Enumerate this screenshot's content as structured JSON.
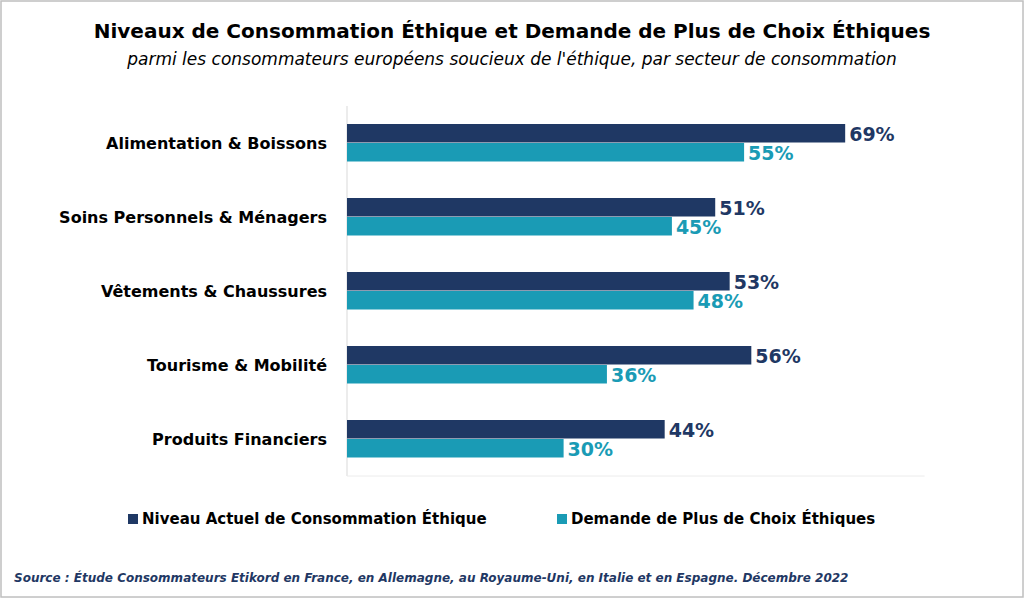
{
  "chart_data": {
    "type": "bar",
    "orientation": "horizontal",
    "title": "Niveaux de Consommation Éthique et Demande de Plus de Choix Éthiques",
    "subtitle": "parmi les consommateurs européens soucieux de l'éthique, par secteur de consommation",
    "categories": [
      "Alimentation & Boissons",
      "Soins Personnels & Ménagers",
      "Vêtements & Chaussures",
      "Tourisme & Mobilité",
      "Produits Financiers"
    ],
    "series": [
      {
        "name": "Niveau Actuel de Consommation Éthique",
        "color": "#1f3864",
        "values": [
          69,
          51,
          53,
          56,
          44
        ],
        "value_labels": [
          "69%",
          "51%",
          "53%",
          "56%",
          "44%"
        ]
      },
      {
        "name": "Demande de Plus de Choix Éthiques",
        "color": "#1a9bb5",
        "values": [
          55,
          45,
          48,
          36,
          30
        ],
        "value_labels": [
          "55%",
          "45%",
          "48%",
          "36%",
          "30%"
        ]
      }
    ],
    "xlim": [
      0,
      80
    ],
    "data_labels": true,
    "tick_labels": "y",
    "grid": false,
    "legend": "bottom",
    "source": "Source : Étude Consommateurs Etikord en France, en Allemagne, au Royaume-Uni, en Italie et en Espagne. Décembre 2022"
  }
}
